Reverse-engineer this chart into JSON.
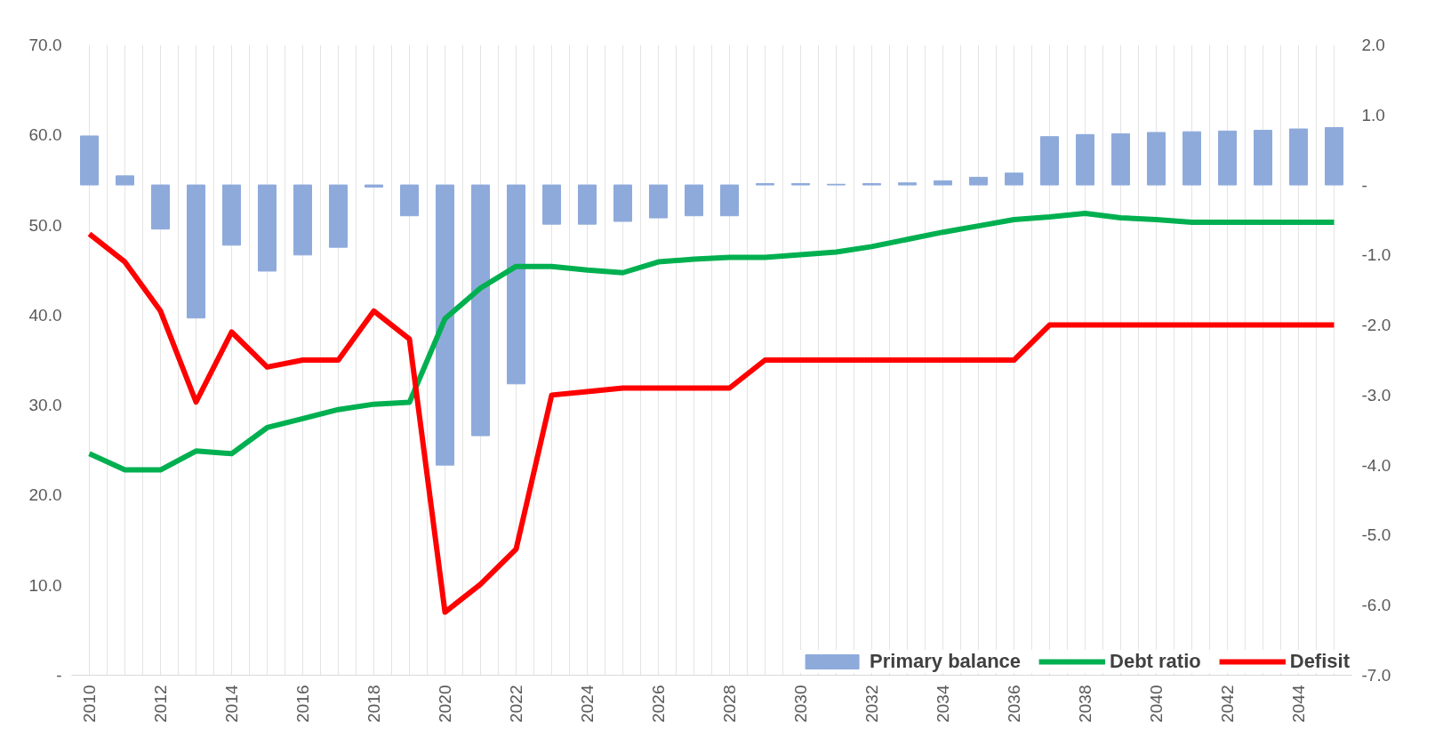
{
  "chart_data": {
    "type": "bar",
    "categories": [
      "2010",
      null,
      "2012",
      null,
      "2014",
      null,
      "2016",
      null,
      "2018",
      null,
      "2020",
      null,
      "2022",
      null,
      "2024",
      null,
      "2026",
      null,
      "2028",
      null,
      "2030",
      null,
      "2032",
      null,
      "2034",
      null,
      "2036",
      null,
      "2038",
      null,
      "2040",
      null,
      "2042",
      null,
      "2044",
      null
    ],
    "series": [
      {
        "name": "Primary balance",
        "axis": "y2",
        "color": "#8eaadb",
        "values": [
          0.7,
          0.13,
          -0.63,
          -1.9,
          -0.86,
          -1.23,
          -1.0,
          -0.89,
          -0.03,
          -0.44,
          -4.0,
          -3.58,
          -2.84,
          -0.56,
          -0.56,
          -0.52,
          -0.47,
          -0.44,
          -0.44,
          0.02,
          0.02,
          0.01,
          0.02,
          0.03,
          0.06,
          0.11,
          0.17,
          0.69,
          0.72,
          0.73,
          0.75,
          0.76,
          0.77,
          0.78,
          0.8,
          0.82
        ]
      },
      {
        "name": "Debt ratio",
        "type": "line",
        "color": "#00b050",
        "values": [
          24.6,
          22.8,
          22.8,
          24.9,
          24.6,
          27.5,
          28.5,
          29.5,
          30.1,
          30.3,
          39.6,
          43.0,
          45.4,
          45.4,
          45.0,
          44.7,
          45.9,
          46.2,
          46.4,
          46.4,
          46.7,
          47.0,
          47.6,
          48.4,
          49.2,
          49.9,
          50.6,
          50.9,
          51.3,
          50.8,
          50.6,
          50.3,
          50.3,
          50.3,
          50.3,
          50.3
        ]
      },
      {
        "name": "Defisit",
        "type": "line",
        "axis": "y2",
        "color": "#ff0000",
        "values": [
          -0.7,
          -1.1,
          -1.8,
          -3.1,
          -2.1,
          -2.6,
          -2.5,
          -2.5,
          -1.8,
          -2.2,
          -6.1,
          -5.7,
          -5.2,
          -3.0,
          -2.95,
          -2.9,
          -2.9,
          -2.9,
          -2.9,
          -2.5,
          -2.5,
          -2.5,
          -2.5,
          -2.5,
          -2.5,
          -2.5,
          -2.5,
          -2.0,
          -2.0,
          -2.0,
          -2.0,
          -2.0,
          -2.0,
          -2.0,
          -2.0,
          -2.0
        ]
      }
    ],
    "ylim": [
      0,
      70
    ],
    "yticks": [
      {
        "value": 0,
        "label": "-"
      },
      {
        "value": 10,
        "label": "10.0"
      },
      {
        "value": 20,
        "label": "20.0"
      },
      {
        "value": 30,
        "label": "30.0"
      },
      {
        "value": 40,
        "label": "40.0"
      },
      {
        "value": 50,
        "label": "50.0"
      },
      {
        "value": 60,
        "label": "60.0"
      },
      {
        "value": 70,
        "label": "70.0"
      }
    ],
    "y2lim": [
      -7,
      2
    ],
    "y2ticks": [
      {
        "value": -7,
        "label": "-7.0"
      },
      {
        "value": -6,
        "label": "-6.0"
      },
      {
        "value": -5,
        "label": "-5.0"
      },
      {
        "value": -4,
        "label": "-4.0"
      },
      {
        "value": -3,
        "label": "-3.0"
      },
      {
        "value": -2,
        "label": "-2.0"
      },
      {
        "value": -1,
        "label": "-1.0"
      },
      {
        "value": 0,
        "label": "-"
      },
      {
        "value": 1,
        "label": "1.0"
      },
      {
        "value": 2,
        "label": "2.0"
      }
    ],
    "grid": "x",
    "legend": "bottom right",
    "line_style": "solid"
  }
}
